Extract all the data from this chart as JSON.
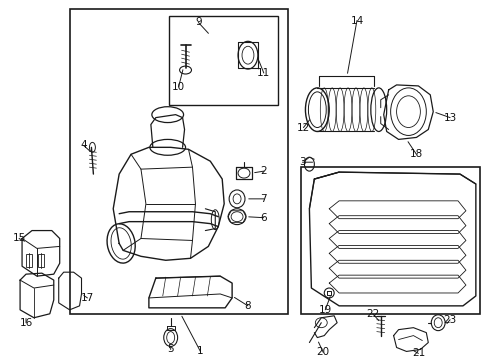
{
  "bg_color": "#ffffff",
  "fig_width": 4.89,
  "fig_height": 3.6,
  "dpi": 100,
  "line_color": "#1a1a1a",
  "text_color": "#111111",
  "font_size": 7.5
}
